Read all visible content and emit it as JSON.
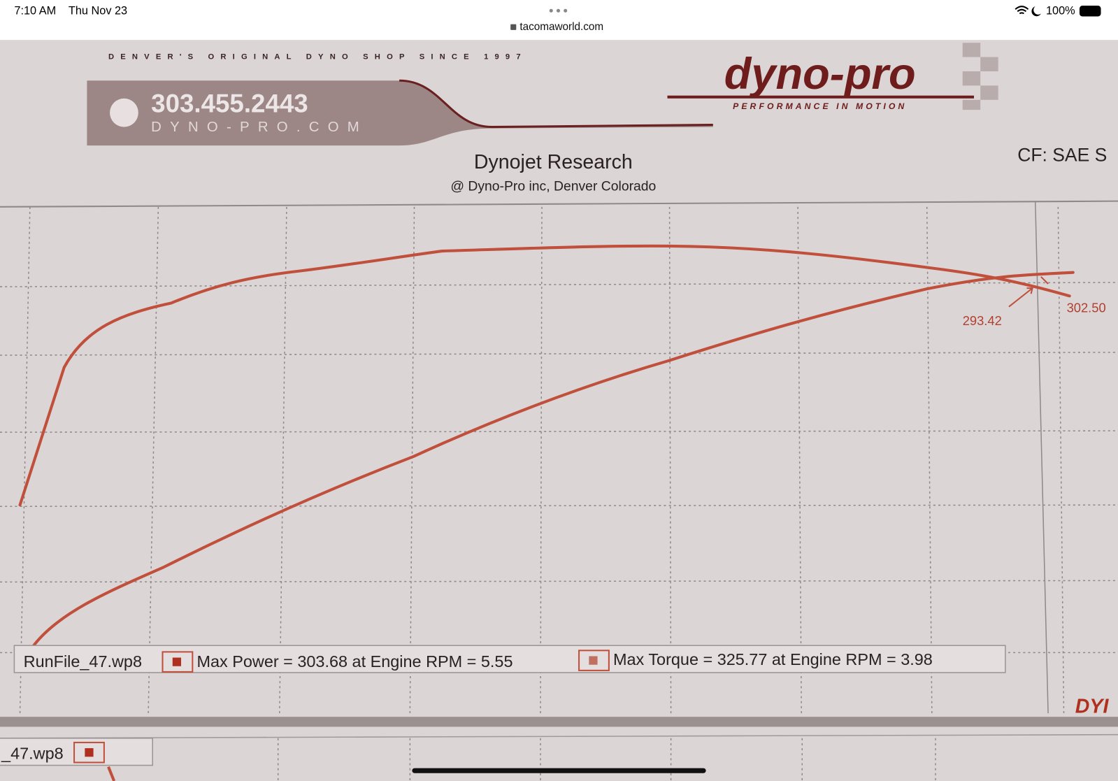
{
  "status_bar": {
    "time": "7:10 AM",
    "date": "Thu Nov 23",
    "battery": "100%"
  },
  "browser": {
    "url": "tacomaworld.com"
  },
  "sheet": {
    "tagline": "DENVER'S ORIGINAL DYNO SHOP SINCE 1997",
    "phone": "303.455.2443",
    "website": "DYNO-PRO.COM",
    "logo": "dyno-pro",
    "logo_tagline": "PERFORMANCE IN MOTION",
    "title": "Dynojet Research",
    "subtitle": "@ Dyno-Pro inc,  Denver Colorado",
    "correction": "CF: SAE S",
    "annotations": [
      "293.42",
      "302.50"
    ],
    "legend": {
      "file": "RunFile_47.wp8",
      "max_power": "Max Power = 303.68 at Engine RPM = 5.55",
      "max_torque": "Max Torque = 325.77 at Engine RPM = 3.98"
    },
    "footer_logo": "DYI",
    "second_file": "_47.wp8"
  }
}
